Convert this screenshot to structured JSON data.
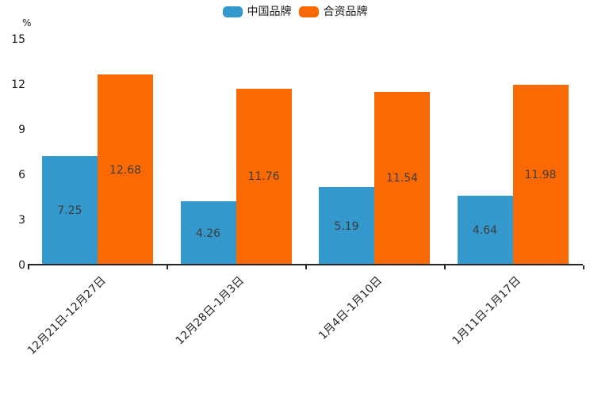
{
  "chart_data": {
    "type": "bar",
    "categories": [
      "12月21日-12月27日",
      "12月28日-1月3日",
      "1月4日-1月10日",
      "1月11日-1月17日"
    ],
    "series": [
      {
        "name": "中国品牌",
        "color": "#3398cc",
        "values": [
          7.25,
          4.26,
          5.19,
          4.64
        ]
      },
      {
        "name": "合资品牌",
        "color": "#fb6a02",
        "values": [
          12.68,
          11.76,
          11.54,
          11.98
        ]
      }
    ],
    "title": "",
    "xlabel": "",
    "ylabel": "%",
    "ylim": [
      0,
      15
    ],
    "yticks": [
      0,
      3,
      6,
      9,
      12,
      15
    ],
    "grid": false,
    "legend_position": "top-center",
    "value_labels": "inside-center",
    "value_label_format": "0.00"
  }
}
